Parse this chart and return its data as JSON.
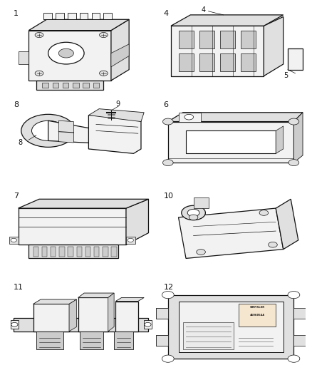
{
  "bg_color": "#ffffff",
  "grid_color": "#444444",
  "line_color": "#111111",
  "text_color": "#111111",
  "cell_numbers": [
    "1",
    "4",
    "8",
    "6",
    "7",
    "10",
    "11",
    "12"
  ],
  "extra_cell_numbers": {
    "1": [
      "5"
    ],
    "2": [
      "9",
      "8"
    ]
  },
  "fig_width": 4.38,
  "fig_height": 5.33,
  "dpi": 100
}
